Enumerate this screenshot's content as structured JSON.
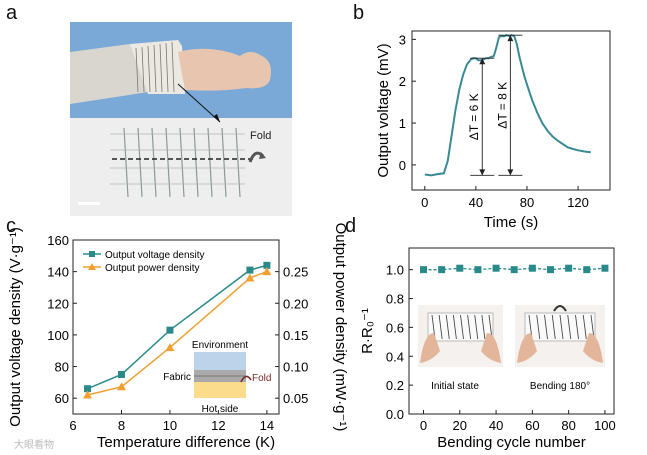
{
  "panels": {
    "a": {
      "letter": "a",
      "fold_label": "Fold"
    },
    "b": {
      "letter": "b"
    },
    "c": {
      "letter": "c"
    },
    "d": {
      "letter": "d"
    }
  },
  "chart_data": [
    {
      "panel": "b",
      "type": "line",
      "xlabel": "Time (s)",
      "ylabel": "Output voltage (mV)",
      "xlim": [
        -10,
        145
      ],
      "ylim": [
        -0.6,
        3.2
      ],
      "xticks": [
        0,
        40,
        80,
        120
      ],
      "yticks": [
        0,
        1,
        2,
        3
      ],
      "color": "#3a8a94",
      "series": [
        {
          "x": [
            0,
            5,
            10,
            15,
            18,
            21,
            24,
            27,
            30,
            33,
            36,
            38,
            40,
            42,
            44,
            46,
            48,
            50,
            52,
            54,
            56,
            58,
            60,
            62,
            64,
            66,
            68,
            70,
            72,
            74,
            76,
            78,
            80,
            84,
            88,
            92,
            96,
            100,
            104,
            108,
            112,
            116,
            120,
            125,
            130
          ],
          "y": [
            -0.23,
            -0.25,
            -0.22,
            -0.2,
            0.1,
            0.7,
            1.3,
            1.8,
            2.15,
            2.4,
            2.52,
            2.55,
            2.55,
            2.5,
            2.5,
            2.52,
            2.55,
            2.55,
            2.58,
            2.6,
            2.8,
            3.05,
            3.08,
            3.07,
            3.1,
            3.08,
            3.1,
            3.08,
            2.9,
            2.6,
            2.35,
            2.12,
            1.92,
            1.55,
            1.25,
            1.0,
            0.82,
            0.68,
            0.58,
            0.5,
            0.42,
            0.38,
            0.35,
            0.32,
            0.3
          ]
        }
      ],
      "annotations": [
        {
          "text": "ΔT = 6 K",
          "x": 45,
          "y_from": -0.25,
          "y_to": 2.55
        },
        {
          "text": "ΔT = 8 K",
          "x": 67,
          "y_from": -0.25,
          "y_to": 3.1
        }
      ]
    },
    {
      "panel": "c",
      "type": "line",
      "xlabel": "Temperature difference (K)",
      "ylabel": "Output voltage density (V·g⁻¹)",
      "y2label": "Output power density (mW·g⁻¹)",
      "xlim": [
        6,
        14.5
      ],
      "ylim": [
        50,
        160
      ],
      "y2lim": [
        0.025,
        0.3
      ],
      "xticks": [
        6,
        8,
        10,
        12,
        14
      ],
      "yticks": [
        60,
        80,
        100,
        120,
        140,
        160
      ],
      "y2ticks": [
        0.05,
        0.1,
        0.15,
        0.2,
        0.25
      ],
      "x": [
        6.6,
        8,
        10,
        13.3,
        14
      ],
      "series": [
        {
          "name": "Output voltage density",
          "axis": "left",
          "color": "#2a8a8a",
          "marker": "square",
          "values": [
            66,
            75,
            103,
            141,
            144
          ]
        },
        {
          "name": "Output power density",
          "axis": "right",
          "color": "#f0a030",
          "marker": "triangle",
          "values": [
            0.055,
            0.068,
            0.13,
            0.24,
            0.25
          ]
        }
      ],
      "legend": "top-left",
      "inset": {
        "top_label": "Environment",
        "left_label": "Fabric",
        "right_label": "Fold",
        "bottom_label": "Hot side"
      }
    },
    {
      "panel": "d",
      "type": "scatter",
      "xlabel": "Bending cycle number",
      "ylabel": "R·R₀⁻¹",
      "xlim": [
        -8,
        105
      ],
      "ylim": [
        0,
        1.15
      ],
      "xticks": [
        0,
        20,
        40,
        60,
        80,
        100
      ],
      "yticks": [
        0.0,
        0.2,
        0.4,
        0.6,
        0.8,
        1.0
      ],
      "color": "#2a8a8a",
      "x": [
        0,
        10,
        20,
        30,
        40,
        50,
        60,
        70,
        80,
        90,
        100
      ],
      "values": [
        1.0,
        1.0,
        1.01,
        1.0,
        1.01,
        1.0,
        1.01,
        1.0,
        1.01,
        1.0,
        1.01
      ],
      "photo_labels": [
        "Initial state",
        "Bending 180°"
      ]
    }
  ],
  "watermark": "大眼看物"
}
